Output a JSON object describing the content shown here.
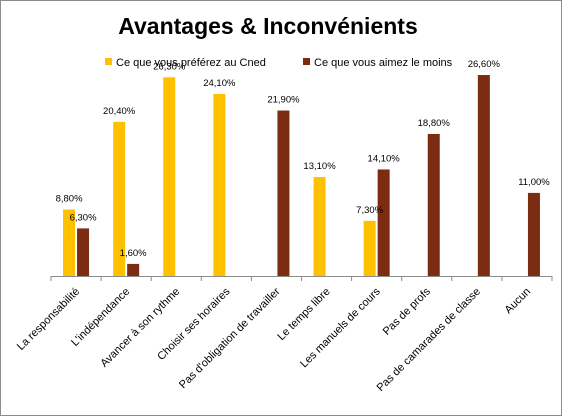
{
  "chart_data": {
    "type": "bar",
    "title": "Avantages & Inconvénients",
    "xlabel": "",
    "ylabel": "",
    "ylim": [
      0,
      27
    ],
    "grid": false,
    "legend_position": "top",
    "categories": [
      "La responsabilité",
      "L'indépendance",
      "Avancer à son rythme",
      "Choisir ses horaires",
      "Pas d'obligation de travailler",
      "Le temps libre",
      "Les manuels de cours",
      "Pas de profs",
      "Pas de camarades de classe",
      "Aucun"
    ],
    "series": [
      {
        "name": "Ce que vous préférez au Cned",
        "color": "#ffc000",
        "values": [
          8.8,
          20.4,
          26.3,
          24.1,
          null,
          13.1,
          7.3,
          null,
          null,
          null
        ],
        "labels": [
          "8,80%",
          "20,40%",
          "26,30%",
          "24,10%",
          "",
          "13,10%",
          "7,30%",
          "",
          "",
          ""
        ]
      },
      {
        "name": "Ce que vous aimez le moins",
        "color": "#7b2c13",
        "values": [
          6.3,
          1.6,
          null,
          null,
          21.9,
          null,
          14.1,
          18.8,
          26.6,
          11.0
        ],
        "labels": [
          "6,30%",
          "1,60%",
          "",
          "",
          "21,90%",
          "",
          "14,10%",
          "18,80%",
          "26,60%",
          "11,00%"
        ]
      }
    ]
  }
}
